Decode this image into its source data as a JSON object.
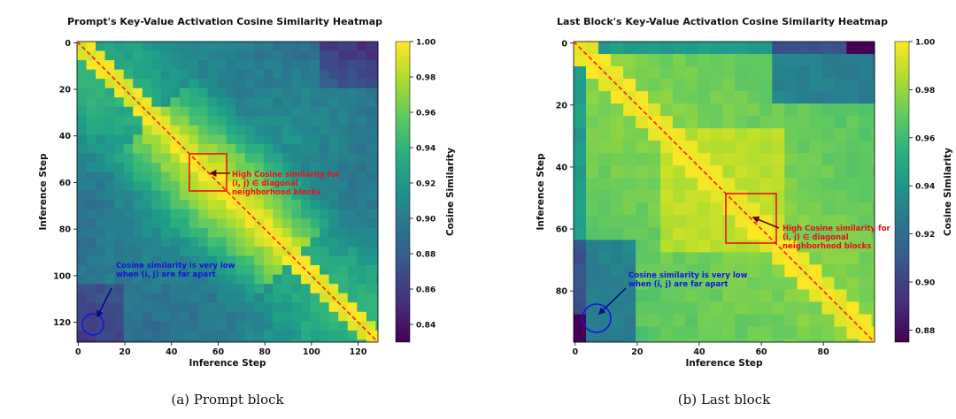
{
  "chart_data": [
    {
      "type": "heatmap",
      "title": "Prompt's Key-Value Activation Cosine Similarity Heatmap",
      "xlabel": "Inference Step",
      "ylabel": "Inference Step",
      "colorbar_label": "Cosine Similarity",
      "colormap": "viridis",
      "size": 129,
      "x_ticks": [
        0,
        20,
        40,
        60,
        80,
        100,
        120
      ],
      "y_ticks": [
        0,
        20,
        40,
        60,
        80,
        100,
        120
      ],
      "colorbar_range": [
        0.83,
        1.0
      ],
      "colorbar_ticks": [
        "0.84",
        "0.86",
        "0.88",
        "0.90",
        "0.92",
        "0.94",
        "0.96",
        "0.98",
        "1.00"
      ],
      "annotations": {
        "red_lines": [
          "High Cosine similarity for",
          "(i, j) ∈ diagonal",
          "neighborhood blocks"
        ],
        "blue_lines": [
          "Cosine similarity is very low",
          "when (i, j) are far apart"
        ]
      },
      "caption": "(a) Prompt block"
    },
    {
      "type": "heatmap",
      "title": "Last Block's Key-Value Activation Cosine Similarity Heatmap",
      "xlabel": "Inference Step",
      "ylabel": "Inference Step",
      "colorbar_label": "Cosine Similarity",
      "colormap": "viridis",
      "size": 97,
      "x_ticks": [
        0,
        20,
        40,
        60,
        80
      ],
      "y_ticks": [
        0,
        20,
        40,
        60,
        80
      ],
      "colorbar_range": [
        0.875,
        1.0
      ],
      "colorbar_ticks": [
        "0.88",
        "0.90",
        "0.92",
        "0.94",
        "0.96",
        "0.98",
        "1.00"
      ],
      "annotations": {
        "red_lines": [
          "High Cosine similarity for",
          "(i, j) ∈ diagonal",
          "neighborhood blocks"
        ],
        "blue_lines": [
          "Cosine similarity is very low",
          "when (i, j) are far apart"
        ]
      },
      "caption": "(b) Last block"
    }
  ],
  "colors": {
    "diagonal": "#ff1a1a",
    "highlight_box": "#ee1111",
    "blue_circle": "#1515e0",
    "arrow": "#6b0000"
  }
}
